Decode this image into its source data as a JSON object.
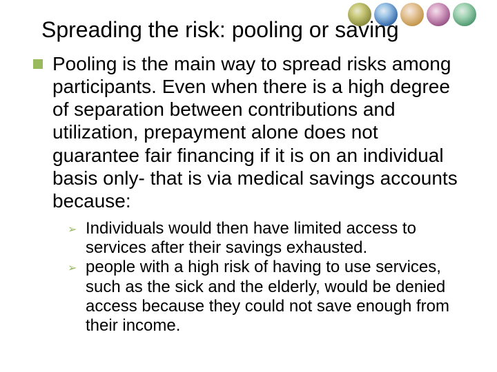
{
  "title": "Spreading the risk: pooling or saving",
  "main_bullet": {
    "marker_color": "#9aba60",
    "text": "Pooling is the main way to spread risks among participants. Even when there is a high degree of separation between contributions and utilization, prepayment alone does not guarantee fair financing if it is on an individual basis only- that is via medical savings accounts because:"
  },
  "sub_bullets": [
    " Individuals would then have limited access to services after their savings exhausted.",
    "people with a high risk of having to use services, such as the sick and the elderly, would be denied access because they could not save enough from their income."
  ],
  "styles": {
    "title_fontsize": 32,
    "main_fontsize": 28,
    "sub_fontsize": 24,
    "bullet_color": "#9aba60",
    "text_color": "#000000",
    "background_color": "#ffffff",
    "arrow_glyph": "➢"
  },
  "logos": {
    "count": 5,
    "position": "top-right"
  }
}
